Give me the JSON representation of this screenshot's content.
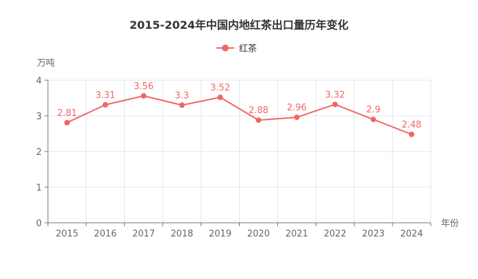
{
  "chart_data": {
    "type": "line",
    "title": "2015-2024年中国内地红茶出口量历年变化",
    "ylabel": "万吨",
    "xlabel": "年份",
    "categories": [
      "2015",
      "2016",
      "2017",
      "2018",
      "2019",
      "2020",
      "2021",
      "2022",
      "2023",
      "2024"
    ],
    "series": [
      {
        "name": "红茶",
        "values": [
          2.81,
          3.31,
          3.56,
          3.3,
          3.52,
          2.88,
          2.96,
          3.32,
          2.9,
          2.48
        ]
      }
    ],
    "data_labels": [
      "2.81",
      "3.31",
      "3.56",
      "3.3",
      "3.52",
      "2.88",
      "2.96",
      "3.32",
      "2.9",
      "2.48"
    ],
    "ylim": [
      0,
      4
    ],
    "yticks": [
      "0",
      "1",
      "2",
      "3",
      "4"
    ],
    "grid": true,
    "legend_position": "top-center",
    "series_color": "#f16565"
  }
}
